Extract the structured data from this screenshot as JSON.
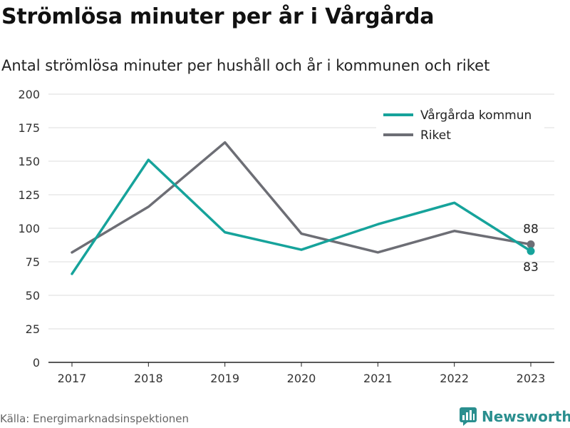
{
  "title": "Strömlösa minuter per år i Vårgårda",
  "subtitle": "Antal strömlösa minuter per hushåll och år i kommunen och riket",
  "source": "Källa: Energimarknadsinspektionen",
  "brand": {
    "name": "Newsworthy",
    "icon": "newsworthy-logo-icon",
    "color": "#2a8f8f"
  },
  "chart_data": {
    "type": "line",
    "x": [
      "2017",
      "2018",
      "2019",
      "2020",
      "2021",
      "2022",
      "2023"
    ],
    "ylim": [
      0,
      200
    ],
    "yticks": [
      0,
      25,
      50,
      75,
      100,
      125,
      150,
      175,
      200
    ],
    "grid": true,
    "legend_position": "top-right",
    "series": [
      {
        "name": "Vårgårda kommun",
        "color": "#16a39b",
        "values": [
          66,
          151,
          97,
          84,
          103,
          119,
          83
        ],
        "end_label": "83"
      },
      {
        "name": "Riket",
        "color": "#6d6e75",
        "values": [
          82,
          116,
          164,
          96,
          82,
          98,
          88
        ],
        "end_label": "88"
      }
    ]
  }
}
